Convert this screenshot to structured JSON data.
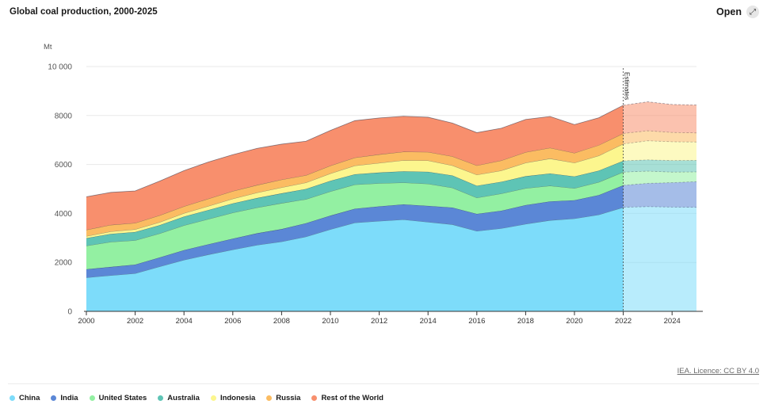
{
  "header": {
    "title": "Global coal production, 2000-2025",
    "open_label": "Open",
    "open_icon": "expand-icon"
  },
  "footer": {
    "licence": "IEA. Licence: CC BY 4.0"
  },
  "chart_data": {
    "type": "area",
    "stacked": true,
    "ylabel": "Mt",
    "ylim": [
      0,
      10000
    ],
    "yticks": [
      0,
      2000,
      4000,
      6000,
      8000,
      10000
    ],
    "ytick_labels": [
      "0",
      "2000",
      "4000",
      "6000",
      "8000",
      "10 000"
    ],
    "xlim": [
      2000,
      2025
    ],
    "xticks": [
      2000,
      2002,
      2004,
      2006,
      2008,
      2010,
      2012,
      2014,
      2016,
      2018,
      2020,
      2022,
      2024
    ],
    "x": [
      2000,
      2001,
      2002,
      2003,
      2004,
      2005,
      2006,
      2007,
      2008,
      2009,
      2010,
      2011,
      2012,
      2013,
      2014,
      2015,
      2016,
      2017,
      2018,
      2019,
      2020,
      2021,
      2022,
      2023,
      2024,
      2025
    ],
    "estimate_start": 2022,
    "estimate_label": "Estimates",
    "grid": "horizontal",
    "legend_position": "bottom",
    "series": [
      {
        "name": "China",
        "color": "#7ddcfa",
        "values": [
          1380,
          1470,
          1550,
          1830,
          2100,
          2320,
          2520,
          2710,
          2850,
          3050,
          3350,
          3620,
          3690,
          3750,
          3650,
          3550,
          3280,
          3390,
          3570,
          3720,
          3790,
          3950,
          4250,
          4280,
          4260,
          4250
        ]
      },
      {
        "name": "India",
        "color": "#5b87d6",
        "values": [
          340,
          345,
          360,
          370,
          400,
          420,
          450,
          480,
          510,
          550,
          560,
          570,
          600,
          620,
          660,
          690,
          700,
          720,
          770,
          770,
          750,
          800,
          900,
          950,
          1000,
          1050
        ]
      },
      {
        "name": "United States",
        "color": "#93f0a2",
        "values": [
          960,
          1020,
          990,
          980,
          1010,
          1030,
          1060,
          1050,
          1060,
          980,
          990,
          990,
          940,
          890,
          900,
          810,
          660,
          700,
          690,
          640,
          490,
          530,
          540,
          500,
          430,
          400
        ]
      },
      {
        "name": "Australia",
        "color": "#5ec4b5",
        "values": [
          310,
          330,
          340,
          340,
          360,
          370,
          380,
          390,
          400,
          420,
          430,
          420,
          440,
          460,
          490,
          500,
          490,
          480,
          490,
          500,
          480,
          470,
          460,
          460,
          470,
          470
        ]
      },
      {
        "name": "Indonesia",
        "color": "#fcf68e",
        "values": [
          80,
          95,
          110,
          120,
          140,
          160,
          190,
          220,
          240,
          260,
          300,
          350,
          390,
          450,
          460,
          410,
          450,
          460,
          550,
          610,
          560,
          610,
          690,
          780,
          770,
          750
        ]
      },
      {
        "name": "Russia",
        "color": "#fbbc62",
        "values": [
          260,
          270,
          260,
          280,
          280,
          300,
          310,
          310,
          320,
          300,
          320,
          330,
          350,
          350,
          350,
          370,
          380,
          410,
          430,
          440,
          400,
          430,
          430,
          410,
          380,
          370
        ]
      },
      {
        "name": "Rest of the World",
        "color": "#f88f6d",
        "values": [
          1350,
          1330,
          1310,
          1400,
          1460,
          1500,
          1490,
          1500,
          1450,
          1390,
          1440,
          1510,
          1490,
          1450,
          1420,
          1360,
          1340,
          1320,
          1340,
          1280,
          1160,
          1120,
          1150,
          1180,
          1140,
          1140
        ]
      }
    ]
  }
}
